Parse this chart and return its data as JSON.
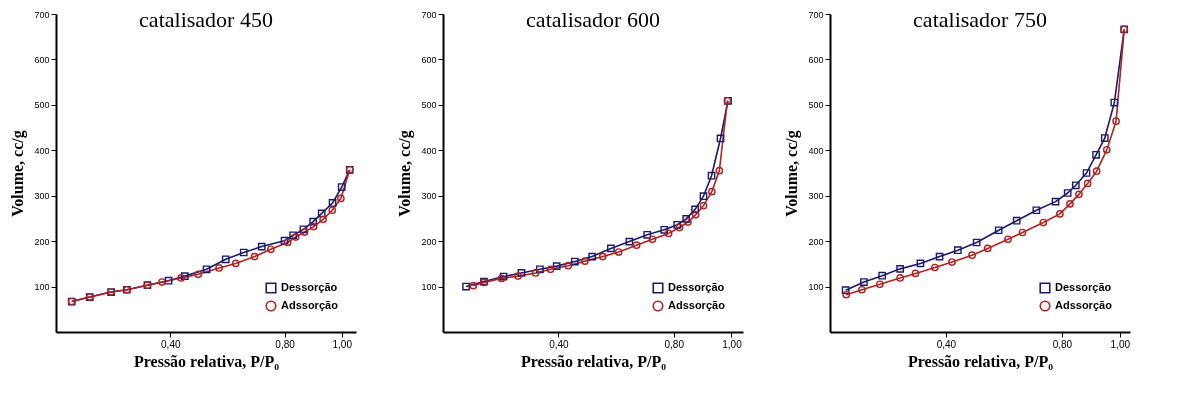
{
  "chart_data": [
    {
      "type": "line",
      "title": "catalisador 450",
      "xlabel": "Pressão relativa, P/P₀",
      "ylabel": "Volume, cc/g",
      "xlim": [
        0,
        1.05
      ],
      "ylim": [
        0,
        700
      ],
      "xticks": [
        {
          "value": 0.4,
          "label": "0,40"
        },
        {
          "value": 0.8,
          "label": "0,80"
        },
        {
          "value": 1.0,
          "label": "1,00"
        }
      ],
      "yticks": [
        100,
        200,
        300,
        400,
        500,
        600,
        700
      ],
      "grid": false,
      "legend": "bottom right",
      "series": [
        {
          "name": "Dessorção",
          "color": "#1a1a6e",
          "marker": "square",
          "x": [
            0.055,
            0.118,
            0.193,
            0.248,
            0.32,
            0.394,
            0.451,
            0.527,
            0.594,
            0.657,
            0.72,
            0.8,
            0.83,
            0.866,
            0.9,
            0.93,
            0.968,
            1.0,
            1.028
          ],
          "values": [
            67,
            77,
            88,
            93,
            103,
            113,
            123,
            138,
            160,
            175,
            188,
            201,
            213,
            226,
            243,
            261,
            284,
            319,
            357
          ]
        },
        {
          "name": "Adssorção",
          "color": "#b22222",
          "marker": "circle",
          "x": [
            0.055,
            0.118,
            0.193,
            0.248,
            0.32,
            0.371,
            0.438,
            0.498,
            0.571,
            0.629,
            0.695,
            0.752,
            0.811,
            0.839,
            0.87,
            0.902,
            0.935,
            0.967,
            0.997,
            1.028
          ],
          "values": [
            67,
            77,
            88,
            93,
            103,
            110,
            119,
            127,
            141,
            151,
            166,
            182,
            197,
            209,
            220,
            232,
            248,
            268,
            294,
            357
          ]
        }
      ]
    },
    {
      "type": "line",
      "title": "catalisador 600",
      "xlabel": "Pressão relativa, P/P₀",
      "ylabel": "Volume, cc/g",
      "xlim": [
        0,
        1.04
      ],
      "ylim": [
        0,
        700
      ],
      "xticks": [
        {
          "value": 0.4,
          "label": "0,40"
        },
        {
          "value": 0.8,
          "label": "0,80"
        },
        {
          "value": 1.0,
          "label": "1,00"
        }
      ],
      "yticks": [
        100,
        200,
        300,
        400,
        500,
        600,
        700
      ],
      "grid": false,
      "legend": "bottom right",
      "series": [
        {
          "name": "Dessorção",
          "color": "#1a1a6e",
          "marker": "square",
          "x": [
            0.08,
            0.142,
            0.21,
            0.272,
            0.336,
            0.394,
            0.457,
            0.517,
            0.582,
            0.646,
            0.708,
            0.767,
            0.812,
            0.843,
            0.874,
            0.903,
            0.931,
            0.962,
            0.988
          ],
          "values": [
            100,
            111,
            122,
            130,
            138,
            145,
            155,
            166,
            184,
            199,
            214,
            225,
            236,
            249,
            270,
            299,
            344,
            426,
            509
          ]
        },
        {
          "name": "Adssorção",
          "color": "#b22222",
          "marker": "circle",
          "x": [
            0.105,
            0.142,
            0.203,
            0.26,
            0.321,
            0.373,
            0.434,
            0.492,
            0.554,
            0.609,
            0.671,
            0.726,
            0.782,
            0.82,
            0.849,
            0.876,
            0.903,
            0.932,
            0.958,
            0.986
          ],
          "values": [
            102,
            109,
            118,
            123,
            130,
            138,
            146,
            156,
            166,
            176,
            191,
            204,
            217,
            230,
            242,
            258,
            278,
            309,
            355,
            509
          ]
        }
      ]
    },
    {
      "type": "line",
      "title": "catalisador 750",
      "xlabel": "Pressão relativa, P/P₀",
      "ylabel": "Volume, cc/g",
      "xlim": [
        0,
        1.035
      ],
      "ylim": [
        0,
        700
      ],
      "xticks": [
        {
          "value": 0.4,
          "label": "0,40"
        },
        {
          "value": 0.8,
          "label": "0,80"
        },
        {
          "value": 1.0,
          "label": "1,00"
        }
      ],
      "yticks": [
        100,
        200,
        300,
        400,
        500,
        600,
        700
      ],
      "grid": false,
      "legend": "bottom right",
      "series": [
        {
          "name": "Dessorção",
          "color": "#1a1a6e",
          "marker": "square",
          "x": [
            0.054,
            0.117,
            0.18,
            0.242,
            0.312,
            0.378,
            0.441,
            0.506,
            0.582,
            0.644,
            0.712,
            0.778,
            0.82,
            0.848,
            0.885,
            0.918,
            0.948,
            0.981,
            1.015
          ],
          "values": [
            92,
            110,
            124,
            139,
            151,
            166,
            180,
            197,
            224,
            245,
            268,
            287,
            306,
            323,
            350,
            390,
            427,
            505,
            666
          ]
        },
        {
          "name": "Adssorção",
          "color": "#b22222",
          "marker": "circle",
          "x": [
            0.056,
            0.11,
            0.172,
            0.242,
            0.295,
            0.362,
            0.421,
            0.49,
            0.544,
            0.614,
            0.664,
            0.736,
            0.793,
            0.828,
            0.859,
            0.889,
            0.92,
            0.955,
            0.987,
            1.015
          ],
          "values": [
            82,
            93,
            105,
            119,
            129,
            142,
            154,
            169,
            184,
            204,
            219,
            241,
            260,
            282,
            303,
            327,
            354,
            401,
            464,
            666
          ]
        }
      ]
    }
  ]
}
